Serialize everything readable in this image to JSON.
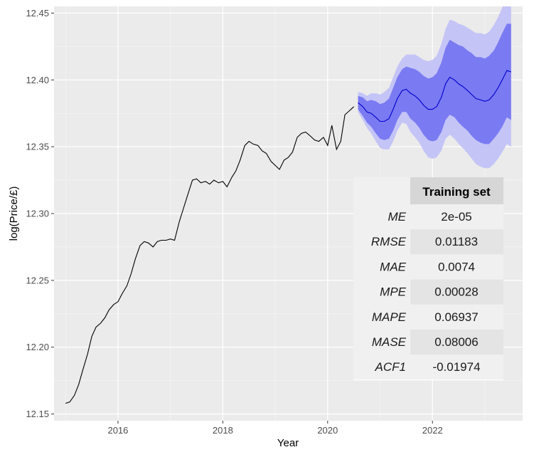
{
  "chart_data": {
    "type": "line",
    "xlabel": "Year",
    "ylabel": "log(Price/£)",
    "xlim": [
      2014.78,
      2023.72
    ],
    "ylim": [
      12.145,
      12.455
    ],
    "x_ticks": [
      2016,
      2018,
      2020,
      2022
    ],
    "y_ticks": [
      12.15,
      12.2,
      12.25,
      12.3,
      12.35,
      12.4,
      12.45
    ],
    "y_tick_labels": [
      "12.15",
      "12.20",
      "12.25",
      "12.30",
      "12.35",
      "12.40",
      "12.45"
    ],
    "grid": true,
    "colors": {
      "history": "#000000",
      "forecast_mean": "#0000cc",
      "band_80": "#7a7af2",
      "band_95": "#c4c4f7",
      "panel": "#ebebeb"
    },
    "history": {
      "x": [
        2015.0,
        2015.08,
        2015.17,
        2015.25,
        2015.33,
        2015.42,
        2015.5,
        2015.58,
        2015.67,
        2015.75,
        2015.83,
        2015.92,
        2016.0,
        2016.08,
        2016.17,
        2016.25,
        2016.33,
        2016.42,
        2016.5,
        2016.58,
        2016.67,
        2016.75,
        2016.83,
        2016.92,
        2017.0,
        2017.08,
        2017.17,
        2017.25,
        2017.33,
        2017.42,
        2017.5,
        2017.58,
        2017.67,
        2017.75,
        2017.83,
        2017.92,
        2018.0,
        2018.08,
        2018.17,
        2018.25,
        2018.33,
        2018.42,
        2018.5,
        2018.58,
        2018.67,
        2018.75,
        2018.83,
        2018.92,
        2019.0,
        2019.08,
        2019.17,
        2019.25,
        2019.33,
        2019.42,
        2019.5,
        2019.58,
        2019.67,
        2019.75,
        2019.83,
        2019.92,
        2020.0,
        2020.08,
        2020.17,
        2020.25,
        2020.33,
        2020.42,
        2020.5
      ],
      "y": [
        12.158,
        12.159,
        12.164,
        12.172,
        12.183,
        12.195,
        12.208,
        12.215,
        12.218,
        12.222,
        12.228,
        12.232,
        12.234,
        12.24,
        12.246,
        12.255,
        12.266,
        12.276,
        12.279,
        12.278,
        12.275,
        12.279,
        12.28,
        12.28,
        12.281,
        12.28,
        12.294,
        12.304,
        12.314,
        12.325,
        12.326,
        12.323,
        12.324,
        12.322,
        12.325,
        12.323,
        12.324,
        12.32,
        12.327,
        12.332,
        12.34,
        12.351,
        12.354,
        12.352,
        12.351,
        12.347,
        12.345,
        12.339,
        12.336,
        12.333,
        12.34,
        12.342,
        12.346,
        12.357,
        12.36,
        12.361,
        12.358,
        12.355,
        12.354,
        12.357,
        12.351,
        12.366,
        12.348,
        12.354,
        12.374,
        12.377,
        12.38
      ]
    },
    "forecast": {
      "x": [
        2020.58,
        2020.67,
        2020.75,
        2020.83,
        2020.92,
        2021.0,
        2021.08,
        2021.17,
        2021.25,
        2021.33,
        2021.42,
        2021.5,
        2021.58,
        2021.67,
        2021.75,
        2021.83,
        2021.92,
        2022.0,
        2022.08,
        2022.17,
        2022.25,
        2022.33,
        2022.42,
        2022.5,
        2022.58,
        2022.67,
        2022.75,
        2022.83,
        2022.92,
        2023.0,
        2023.08,
        2023.17,
        2023.25,
        2023.33,
        2023.42,
        2023.5
      ],
      "mean": [
        12.383,
        12.38,
        12.376,
        12.375,
        12.372,
        12.369,
        12.369,
        12.371,
        12.378,
        12.386,
        12.392,
        12.393,
        12.39,
        12.388,
        12.385,
        12.381,
        12.378,
        12.378,
        12.38,
        12.387,
        12.397,
        12.402,
        12.4,
        12.397,
        12.395,
        12.392,
        12.389,
        12.386,
        12.385,
        12.384,
        12.385,
        12.389,
        12.394,
        12.4,
        12.407,
        12.406
      ],
      "lo80": [
        12.378,
        12.373,
        12.368,
        12.365,
        12.36,
        12.356,
        12.355,
        12.356,
        12.362,
        12.37,
        12.376,
        12.376,
        12.371,
        12.368,
        12.364,
        12.359,
        12.355,
        12.354,
        12.355,
        12.361,
        12.37,
        12.374,
        12.372,
        12.368,
        12.365,
        12.362,
        12.358,
        12.355,
        12.353,
        12.352,
        12.352,
        12.356,
        12.36,
        12.365,
        12.372,
        12.37
      ],
      "hi80": [
        12.388,
        12.387,
        12.384,
        12.385,
        12.384,
        12.382,
        12.383,
        12.386,
        12.394,
        12.402,
        12.408,
        12.41,
        12.409,
        12.408,
        12.406,
        12.403,
        12.401,
        12.402,
        12.405,
        12.413,
        12.424,
        12.43,
        12.428,
        12.426,
        12.425,
        12.422,
        12.42,
        12.417,
        12.417,
        12.416,
        12.418,
        12.422,
        12.428,
        12.435,
        12.442,
        12.442
      ],
      "lo95": [
        12.376,
        12.37,
        12.364,
        12.36,
        12.354,
        12.349,
        12.348,
        12.348,
        12.354,
        12.362,
        12.368,
        12.367,
        12.361,
        12.357,
        12.353,
        12.347,
        12.342,
        12.341,
        12.342,
        12.347,
        12.356,
        12.359,
        12.356,
        12.352,
        12.349,
        12.345,
        12.341,
        12.337,
        12.335,
        12.334,
        12.334,
        12.337,
        12.341,
        12.346,
        12.352,
        12.35
      ],
      "hi95": [
        12.391,
        12.39,
        12.388,
        12.39,
        12.39,
        12.389,
        12.391,
        12.394,
        12.402,
        12.41,
        12.416,
        12.419,
        12.419,
        12.419,
        12.417,
        12.415,
        12.414,
        12.415,
        12.418,
        12.427,
        12.438,
        12.445,
        12.444,
        12.442,
        12.441,
        12.439,
        12.437,
        12.435,
        12.435,
        12.434,
        12.436,
        12.441,
        12.447,
        12.454,
        12.462,
        12.462
      ]
    }
  },
  "table": {
    "header": "Training set",
    "rows": [
      {
        "label": "ME",
        "value": "2e-05"
      },
      {
        "label": "RMSE",
        "value": "0.01183"
      },
      {
        "label": "MAE",
        "value": "0.0074"
      },
      {
        "label": "MPE",
        "value": "0.00028"
      },
      {
        "label": "MAPE",
        "value": "0.06937"
      },
      {
        "label": "MASE",
        "value": "0.08006"
      },
      {
        "label": "ACF1",
        "value": "-0.01974"
      }
    ]
  }
}
